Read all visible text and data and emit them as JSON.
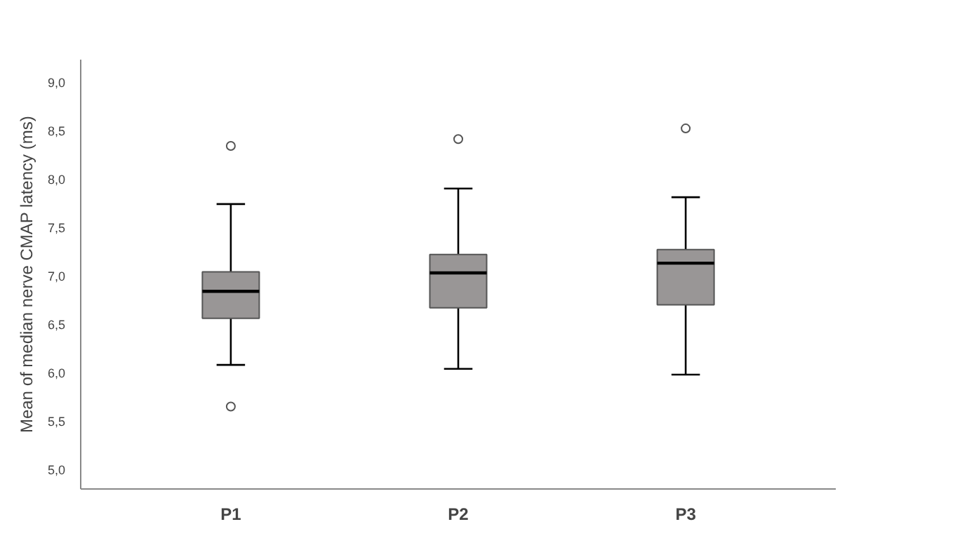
{
  "chart_data": {
    "type": "box",
    "ylabel": "Mean of median nerve CMAP latency (ms)",
    "categories": [
      "P1",
      "P2",
      "P3"
    ],
    "color": "#999696",
    "boxes": [
      {
        "low": 6.08,
        "q1": 6.56,
        "median": 6.84,
        "q3": 7.04,
        "high": 7.74,
        "outliers": [
          8.34,
          5.65
        ]
      },
      {
        "low": 6.04,
        "q1": 6.67,
        "median": 7.03,
        "q3": 7.22,
        "high": 7.9,
        "outliers": [
          8.41
        ]
      },
      {
        "low": 5.98,
        "q1": 6.7,
        "median": 7.13,
        "q3": 7.27,
        "high": 7.81,
        "outliers": [
          8.52
        ]
      }
    ],
    "ylim": [
      4.8,
      9.23
    ],
    "yticks": [
      {
        "value": 5.0,
        "label": "5,0"
      },
      {
        "value": 5.5,
        "label": "5,5"
      },
      {
        "value": 6.0,
        "label": "6,0"
      },
      {
        "value": 6.5,
        "label": "6,5"
      },
      {
        "value": 7.0,
        "label": "7,0"
      },
      {
        "value": 7.5,
        "label": "7,5"
      },
      {
        "value": 8.0,
        "label": "8,0"
      },
      {
        "value": 8.5,
        "label": "8,5"
      },
      {
        "value": 9.0,
        "label": "9,0"
      }
    ],
    "grid": false
  }
}
